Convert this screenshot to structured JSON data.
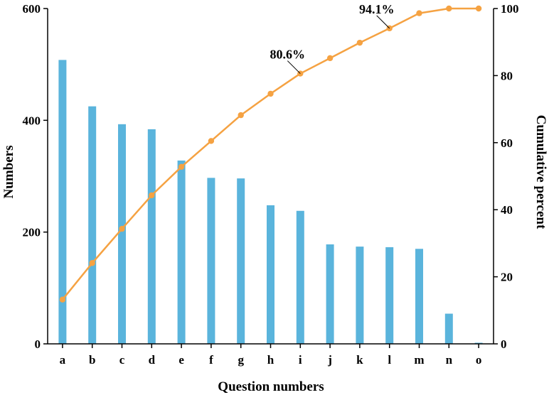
{
  "chart_data": {
    "type": "bar",
    "title": "",
    "xlabel": "Question numbers",
    "ylabel": "Numbers",
    "y2label": "Cumulative percent",
    "ylim": [
      0,
      600
    ],
    "y2lim": [
      0,
      100
    ],
    "yticks": [
      "0",
      "200",
      "400",
      "600"
    ],
    "y2ticks": [
      "0",
      "20",
      "40",
      "60",
      "80",
      "100"
    ],
    "grid": false,
    "categories": [
      "a",
      "b",
      "c",
      "d",
      "e",
      "f",
      "g",
      "h",
      "i",
      "j",
      "k",
      "l",
      "m",
      "n",
      "o"
    ],
    "series": [
      {
        "type": "bar",
        "axis": "left",
        "color": "#5ab4dc",
        "values": [
          508,
          425,
          393,
          384,
          328,
          297,
          296,
          248,
          238,
          178,
          174,
          173,
          170,
          54,
          2
        ]
      },
      {
        "type": "line",
        "axis": "right",
        "color": "#f5a242",
        "values": [
          13.2,
          24.1,
          34.3,
          44.3,
          52.8,
          60.5,
          68.2,
          74.6,
          80.6,
          85.2,
          89.8,
          94.1,
          98.6,
          100,
          100
        ]
      }
    ],
    "annotations": [
      {
        "text": "80.6%",
        "category": "i",
        "value": 80.6
      },
      {
        "text": "94.1%",
        "category": "l",
        "value": 94.1
      }
    ]
  }
}
